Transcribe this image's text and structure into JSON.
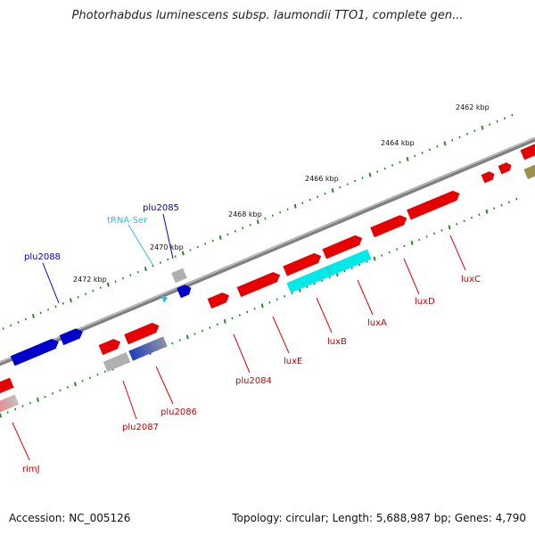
{
  "title": "Photorhabdus luminescens subsp. laumondii TTO1, complete gen...",
  "footer": {
    "accession": "Accession: NC_005126",
    "summary": "Topology: circular; Length: 5,688,987 bp; Genes: 4,790"
  },
  "colors": {
    "forward_gene": "#e60000",
    "reverse_gene": "#0000cc",
    "rRNA_tRNA": "#00e0e0",
    "pseudo": "#b0b0b0",
    "other": "#a09050",
    "backbone": "#808080",
    "ticks": "#2a8a2a"
  },
  "kbp_labels": [
    {
      "text": "2462 kbp"
    },
    {
      "text": "2464 kbp"
    },
    {
      "text": "2466 kbp"
    },
    {
      "text": "2468 kbp"
    },
    {
      "text": "2470 kbp"
    },
    {
      "text": "2472 kbp"
    }
  ],
  "gene_labels": [
    {
      "text": "plu2085",
      "strand": "reverse"
    },
    {
      "text": "tRNA-Ser",
      "strand": "rna"
    },
    {
      "text": "plu2088",
      "strand": "reverse"
    },
    {
      "text": "luxC",
      "strand": "forward"
    },
    {
      "text": "luxD",
      "strand": "forward"
    },
    {
      "text": "luxA",
      "strand": "forward"
    },
    {
      "text": "luxB",
      "strand": "forward"
    },
    {
      "text": "luxE",
      "strand": "forward"
    },
    {
      "text": "plu2084",
      "strand": "forward"
    },
    {
      "text": "plu2086",
      "strand": "forward"
    },
    {
      "text": "plu2087",
      "strand": "forward"
    },
    {
      "text": "rimJ",
      "strand": "forward"
    }
  ]
}
